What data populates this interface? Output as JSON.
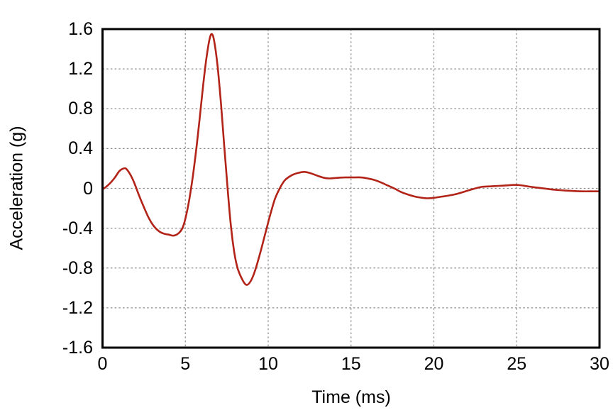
{
  "figure": {
    "background_color": "#ffffff",
    "frame_color": "#000000",
    "grid_color": "#8c8c8c",
    "text_color": "#000000"
  },
  "chart_data": {
    "type": "line",
    "title": "",
    "xlabel": "Time (ms)",
    "ylabel": "Acceleration (g)",
    "xlim": [
      0,
      30
    ],
    "ylim": [
      -1.6,
      1.6
    ],
    "x_ticks": [
      0,
      5,
      10,
      15,
      20,
      25,
      30
    ],
    "y_ticks": [
      -1.6,
      -1.2,
      -0.8,
      -0.4,
      0,
      0.4,
      0.8,
      1.2,
      1.6
    ],
    "x_tick_labels": [
      "0",
      "5",
      "10",
      "15",
      "20",
      "25",
      "30"
    ],
    "y_tick_labels": [
      "-1.6",
      "-1.2",
      "-0.8",
      "-0.4",
      "0",
      "0.4",
      "0.8",
      "1.2",
      "1.6"
    ],
    "grid": "dashed interior gridlines, both axes",
    "legend": "none",
    "series": [
      {
        "name": "acceleration-trace",
        "color": "#b22318",
        "points": [
          [
            0,
            -0.01
          ],
          [
            0.25,
            0.02
          ],
          [
            0.5,
            0.06
          ],
          [
            0.75,
            0.11
          ],
          [
            1.0,
            0.17
          ],
          [
            1.2,
            0.195
          ],
          [
            1.4,
            0.2
          ],
          [
            1.6,
            0.16
          ],
          [
            1.8,
            0.1
          ],
          [
            2.0,
            0.02
          ],
          [
            2.2,
            -0.07
          ],
          [
            2.5,
            -0.19
          ],
          [
            2.8,
            -0.3
          ],
          [
            3.1,
            -0.38
          ],
          [
            3.4,
            -0.43
          ],
          [
            3.7,
            -0.455
          ],
          [
            4.0,
            -0.465
          ],
          [
            4.3,
            -0.475
          ],
          [
            4.6,
            -0.45
          ],
          [
            4.85,
            -0.39
          ],
          [
            5.05,
            -0.27
          ],
          [
            5.25,
            -0.1
          ],
          [
            5.45,
            0.12
          ],
          [
            5.65,
            0.38
          ],
          [
            5.85,
            0.68
          ],
          [
            6.05,
            1.0
          ],
          [
            6.25,
            1.28
          ],
          [
            6.45,
            1.49
          ],
          [
            6.6,
            1.55
          ],
          [
            6.75,
            1.47
          ],
          [
            6.95,
            1.22
          ],
          [
            7.15,
            0.85
          ],
          [
            7.35,
            0.42
          ],
          [
            7.55,
            0.0
          ],
          [
            7.75,
            -0.38
          ],
          [
            7.95,
            -0.64
          ],
          [
            8.15,
            -0.8
          ],
          [
            8.45,
            -0.92
          ],
          [
            8.7,
            -0.97
          ],
          [
            8.95,
            -0.93
          ],
          [
            9.2,
            -0.83
          ],
          [
            9.5,
            -0.66
          ],
          [
            9.8,
            -0.47
          ],
          [
            10.1,
            -0.28
          ],
          [
            10.4,
            -0.11
          ],
          [
            10.7,
            0.0
          ],
          [
            11.0,
            0.08
          ],
          [
            11.4,
            0.13
          ],
          [
            11.8,
            0.155
          ],
          [
            12.2,
            0.165
          ],
          [
            12.6,
            0.15
          ],
          [
            13.0,
            0.125
          ],
          [
            13.4,
            0.105
          ],
          [
            13.7,
            0.1
          ],
          [
            14.1,
            0.105
          ],
          [
            14.6,
            0.11
          ],
          [
            15.1,
            0.11
          ],
          [
            15.6,
            0.11
          ],
          [
            16.0,
            0.1
          ],
          [
            16.4,
            0.085
          ],
          [
            16.8,
            0.06
          ],
          [
            17.2,
            0.03
          ],
          [
            17.6,
            0.0
          ],
          [
            18.0,
            -0.035
          ],
          [
            18.4,
            -0.06
          ],
          [
            18.8,
            -0.08
          ],
          [
            19.2,
            -0.093
          ],
          [
            19.6,
            -0.1
          ],
          [
            20.0,
            -0.095
          ],
          [
            20.4,
            -0.085
          ],
          [
            20.9,
            -0.072
          ],
          [
            21.4,
            -0.055
          ],
          [
            21.9,
            -0.03
          ],
          [
            22.4,
            -0.005
          ],
          [
            22.9,
            0.015
          ],
          [
            23.4,
            0.02
          ],
          [
            23.9,
            0.025
          ],
          [
            24.4,
            0.03
          ],
          [
            24.9,
            0.035
          ],
          [
            25.2,
            0.032
          ],
          [
            25.6,
            0.022
          ],
          [
            26.0,
            0.012
          ],
          [
            26.4,
            0.004
          ],
          [
            26.8,
            -0.004
          ],
          [
            27.2,
            -0.012
          ],
          [
            27.6,
            -0.018
          ],
          [
            28.0,
            -0.023
          ],
          [
            28.5,
            -0.027
          ],
          [
            29.0,
            -0.03
          ],
          [
            29.5,
            -0.03
          ],
          [
            30.0,
            -0.03
          ]
        ]
      }
    ]
  }
}
